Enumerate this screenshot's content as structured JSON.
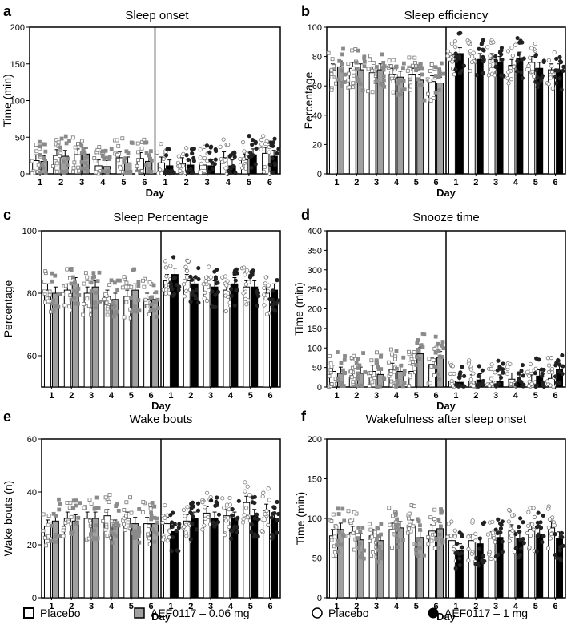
{
  "legend": [
    {
      "label": "Placebo",
      "marker": "open-square"
    },
    {
      "label": "AEF0117 – 0.06 mg",
      "marker": "grey-square"
    },
    {
      "label": "Placebo",
      "marker": "open-circle"
    },
    {
      "label": "AEF0117 – 1 mg",
      "marker": "black-circle"
    }
  ],
  "colors": {
    "placebo_bar": "#ffffff",
    "low_dose_bar": "#a0a0a0",
    "high_dose_bar": "#000000",
    "axis": "#000000"
  },
  "chart_data": [
    {
      "panel": "a",
      "type": "bar",
      "title": "Sleep onset",
      "xlabel": "Day",
      "ylabel": "Time (min)",
      "ylim": [
        0,
        200
      ],
      "yticks": [
        0,
        50,
        100,
        150,
        200
      ],
      "categories": [
        "1",
        "2",
        "3",
        "4",
        "5",
        "6"
      ],
      "groups": [
        {
          "placebo": [
            18,
            25,
            26,
            11,
            22,
            21
          ],
          "drug": [
            17,
            24,
            27,
            10,
            15,
            17
          ]
        },
        {
          "placebo": [
            15,
            14,
            12,
            22,
            19,
            28
          ],
          "drug": [
            11,
            12,
            11,
            11,
            26,
            24
          ]
        }
      ]
    },
    {
      "panel": "b",
      "type": "bar",
      "title": "Sleep efficiency",
      "xlabel": "Day",
      "ylabel": "Percentage",
      "ylim": [
        0,
        100
      ],
      "yticks": [
        0,
        20,
        40,
        60,
        80,
        100
      ],
      "categories": [
        "1",
        "2",
        "3",
        "4",
        "5",
        "6"
      ],
      "groups": [
        {
          "placebo": [
            71,
            72,
            69,
            68,
            68,
            63
          ],
          "drug": [
            73,
            71,
            71,
            66,
            64,
            62
          ]
        },
        {
          "placebo": [
            77,
            79,
            78,
            74,
            76,
            71
          ],
          "drug": [
            82,
            78,
            76,
            79,
            72,
            71
          ]
        }
      ]
    },
    {
      "panel": "c",
      "type": "bar",
      "title": "Sleep Percentage",
      "xlabel": "Day",
      "ylabel": "Percentage",
      "ylim": [
        50,
        100
      ],
      "yticks": [
        60,
        80,
        100
      ],
      "categories": [
        "1",
        "2",
        "3",
        "4",
        "5",
        "6"
      ],
      "groups": [
        {
          "placebo": [
            81,
            81,
            80,
            79,
            79,
            78
          ],
          "drug": [
            80,
            83,
            82,
            78,
            81,
            78
          ]
        },
        {
          "placebo": [
            84,
            84,
            83,
            81,
            82,
            80
          ],
          "drug": [
            86,
            83,
            82,
            83,
            82,
            81
          ]
        }
      ]
    },
    {
      "panel": "d",
      "type": "bar",
      "title": "Snooze time",
      "xlabel": "Day",
      "ylabel": "Time (min)",
      "ylim": [
        0,
        400
      ],
      "yticks": [
        0,
        50,
        100,
        150,
        200,
        250,
        300,
        350,
        400
      ],
      "categories": [
        "1",
        "2",
        "3",
        "4",
        "5",
        "6"
      ],
      "groups": [
        {
          "placebo": [
            40,
            25,
            40,
            45,
            40,
            58
          ],
          "drug": [
            35,
            35,
            32,
            40,
            85,
            75
          ]
        },
        {
          "placebo": [
            15,
            15,
            10,
            20,
            15,
            22
          ],
          "drug": [
            12,
            18,
            15,
            15,
            28,
            45
          ]
        }
      ]
    },
    {
      "panel": "e",
      "type": "bar",
      "title": "Wake bouts",
      "xlabel": "Day",
      "ylabel": "Wake bouts (n)",
      "ylim": [
        0,
        60
      ],
      "yticks": [
        0,
        20,
        40,
        60
      ],
      "categories": [
        "1",
        "2",
        "3",
        "4",
        "5",
        "6"
      ],
      "groups": [
        {
          "placebo": [
            27,
            30,
            30,
            31,
            30,
            28
          ],
          "drug": [
            29,
            29,
            30,
            27,
            28,
            28
          ]
        },
        {
          "placebo": [
            28,
            29,
            32,
            31,
            36,
            33
          ],
          "drug": [
            25,
            30,
            30,
            30,
            31,
            30
          ]
        }
      ]
    },
    {
      "panel": "f",
      "type": "bar",
      "title": "Wakefulness after sleep onset",
      "xlabel": "Day",
      "ylabel": "Time (min)",
      "ylim": [
        0,
        200
      ],
      "yticks": [
        0,
        50,
        100,
        150,
        200
      ],
      "categories": [
        "1",
        "2",
        "3",
        "4",
        "5",
        "6"
      ],
      "groups": [
        {
          "placebo": [
            78,
            82,
            78,
            86,
            90,
            84
          ],
          "drug": [
            86,
            73,
            72,
            88,
            76,
            87
          ]
        },
        {
          "placebo": [
            72,
            72,
            75,
            84,
            86,
            88
          ],
          "drug": [
            60,
            68,
            76,
            75,
            80,
            75
          ]
        }
      ]
    }
  ]
}
